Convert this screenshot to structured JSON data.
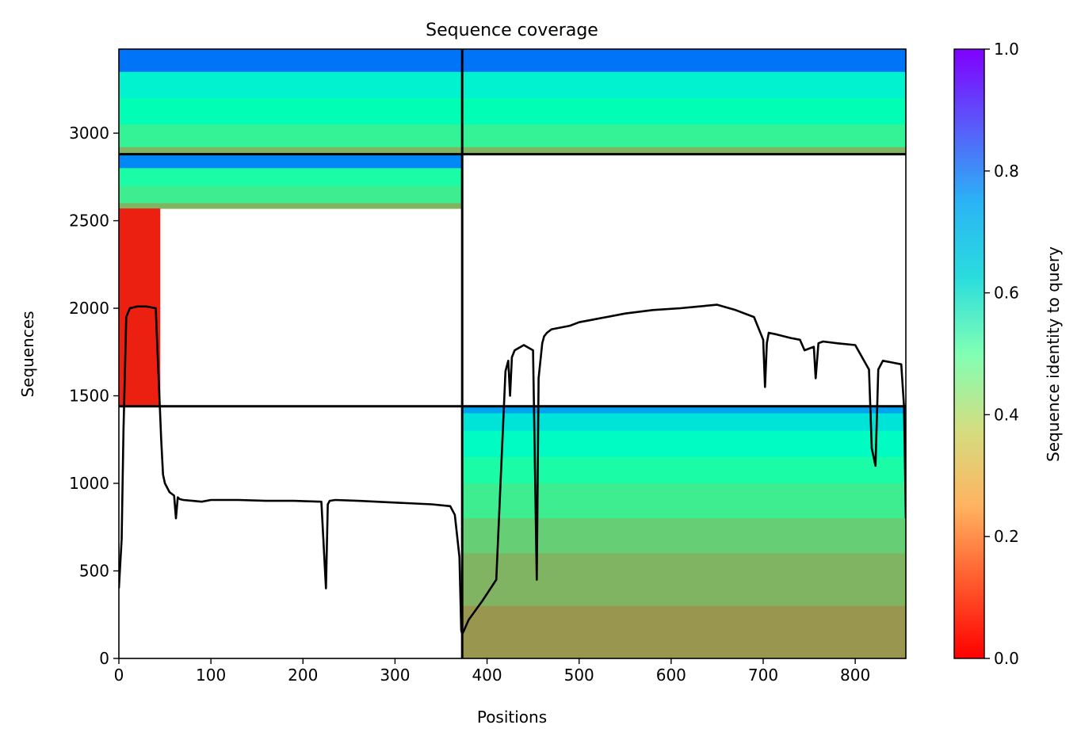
{
  "chart_data": {
    "type": "heatmap",
    "title": "Sequence coverage",
    "xlabel": "Positions",
    "ylabel": "Sequences",
    "xlim": [
      0,
      855
    ],
    "ylim": [
      0,
      3480
    ],
    "x_ticks": [
      0,
      100,
      200,
      300,
      400,
      500,
      600,
      700,
      800
    ],
    "y_ticks": [
      0,
      500,
      1000,
      1500,
      2000,
      2500,
      3000
    ],
    "colorbar": {
      "label": "Sequence identity to query",
      "range": [
        0,
        1
      ],
      "ticks": [
        "0.0",
        "0.2",
        "0.4",
        "0.6",
        "0.8",
        "1.0"
      ],
      "colormap": "rainbow_r"
    },
    "chain_boundary_x": 373,
    "block_boundaries_y": [
      1440,
      2880
    ],
    "blocks": [
      {
        "name": "chain1-only",
        "y_range": [
          1440,
          2880
        ],
        "x_range": [
          0,
          373
        ],
        "bands": [
          {
            "y": [
              2800,
              2880
            ],
            "identity": 0.82
          },
          {
            "y": [
              2700,
              2800
            ],
            "identity": 0.45
          },
          {
            "y": [
              2600,
              2700
            ],
            "identity": 0.38
          },
          {
            "y": [
              2570,
              2600
            ],
            "identity": 0.25
          },
          {
            "y": [
              1440,
              2570
            ],
            "identity": 0.04,
            "x_end": 45
          }
        ]
      },
      {
        "name": "chain2-only",
        "y_range": [
          0,
          1440
        ],
        "x_range": [
          373,
          855
        ],
        "bands": [
          {
            "y": [
              1400,
              1440
            ],
            "identity": 0.78
          },
          {
            "y": [
              1300,
              1400
            ],
            "identity": 0.65
          },
          {
            "y": [
              1150,
              1300
            ],
            "identity": 0.55
          },
          {
            "y": [
              1000,
              1150
            ],
            "identity": 0.45
          },
          {
            "y": [
              800,
              1000
            ],
            "identity": 0.38
          },
          {
            "y": [
              600,
              800
            ],
            "identity": 0.3
          },
          {
            "y": [
              300,
              600
            ],
            "identity": 0.25
          },
          {
            "y": [
              0,
              300
            ],
            "identity": 0.2
          }
        ]
      },
      {
        "name": "paired",
        "y_range": [
          2880,
          3480
        ],
        "x_range": [
          0,
          855
        ],
        "bands": [
          {
            "y": [
              3350,
              3480
            ],
            "identity": 0.85
          },
          {
            "y": [
              3200,
              3350
            ],
            "identity": 0.6
          },
          {
            "y": [
              3050,
              3200
            ],
            "identity": 0.5
          },
          {
            "y": [
              2920,
              3050
            ],
            "identity": 0.4
          },
          {
            "y": [
              2880,
              2920
            ],
            "identity": 0.25
          }
        ]
      }
    ],
    "coverage_line": {
      "x": [
        0,
        3,
        5,
        8,
        12,
        20,
        30,
        40,
        44,
        46,
        48,
        50,
        55,
        60,
        62,
        64,
        66,
        70,
        80,
        90,
        100,
        130,
        160,
        190,
        220,
        225,
        227,
        229,
        235,
        260,
        300,
        340,
        360,
        365,
        370,
        372,
        373,
        375,
        380,
        395,
        410,
        420,
        423,
        425,
        427,
        430,
        440,
        450,
        454,
        456,
        460,
        462,
        465,
        470,
        480,
        490,
        500,
        520,
        550,
        580,
        610,
        630,
        650,
        670,
        690,
        700,
        702,
        704,
        706,
        715,
        730,
        740,
        745,
        755,
        757,
        760,
        765,
        780,
        800,
        815,
        818,
        822,
        825,
        830,
        840,
        850,
        853,
        855
      ],
      "y": [
        400,
        680,
        1300,
        1950,
        2000,
        2010,
        2010,
        2000,
        1500,
        1250,
        1050,
        1000,
        950,
        930,
        800,
        920,
        910,
        905,
        900,
        895,
        905,
        905,
        900,
        900,
        895,
        400,
        880,
        900,
        905,
        900,
        890,
        880,
        870,
        820,
        580,
        160,
        140,
        160,
        220,
        330,
        450,
        1640,
        1700,
        1500,
        1720,
        1760,
        1790,
        1760,
        450,
        1600,
        1800,
        1840,
        1860,
        1880,
        1890,
        1900,
        1920,
        1940,
        1970,
        1990,
        2000,
        2010,
        2020,
        1990,
        1950,
        1820,
        1550,
        1800,
        1860,
        1850,
        1830,
        1820,
        1760,
        1780,
        1600,
        1800,
        1810,
        1800,
        1790,
        1650,
        1200,
        1100,
        1650,
        1700,
        1690,
        1680,
        1440,
        800
      ]
    }
  }
}
